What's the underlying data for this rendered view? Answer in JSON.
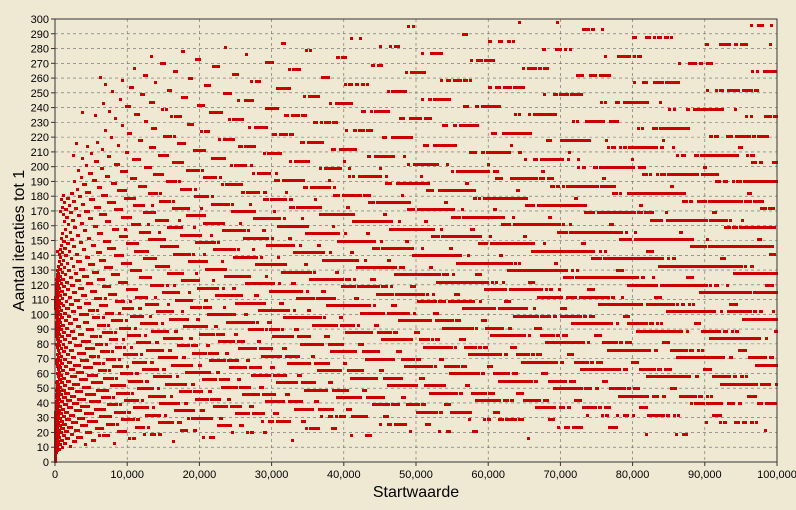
{
  "chart_data": {
    "type": "scatter",
    "title": "",
    "xlabel": "Startwaarde",
    "ylabel": "Aantal iteraties tot 1",
    "xlim": [
      0,
      100000
    ],
    "ylim": [
      0,
      300
    ],
    "x_ticks": [
      0,
      10000,
      20000,
      30000,
      40000,
      50000,
      60000,
      70000,
      80000,
      90000,
      100000
    ],
    "x_tick_labels": [
      "0",
      "10,000",
      "20,000",
      "30,000",
      "40,000",
      "50,000",
      "60,000",
      "70,000",
      "80,000",
      "90,000",
      "100,000"
    ],
    "y_ticks": [
      0,
      10,
      20,
      30,
      40,
      50,
      60,
      70,
      80,
      90,
      100,
      110,
      120,
      130,
      140,
      150,
      160,
      170,
      180,
      190,
      200,
      210,
      220,
      230,
      240,
      250,
      260,
      270,
      280,
      290,
      300
    ],
    "y_tick_labels": [
      "0",
      "10",
      "20",
      "30",
      "40",
      "50",
      "60",
      "70",
      "80",
      "90",
      "100",
      "110",
      "120",
      "130",
      "140",
      "150",
      "160",
      "170",
      "180",
      "190",
      "200",
      "210",
      "220",
      "230",
      "240",
      "250",
      "260",
      "270",
      "280",
      "290",
      "300"
    ],
    "grid": true,
    "legend": "none",
    "series": [
      {
        "x_start": 1,
        "x_end": 100000,
        "x_step": 1,
        "marker_color": "#cc0000"
      }
    ]
  },
  "colors": {
    "background": "#efe9d4",
    "plot_border": "#333333",
    "grid": "#666666",
    "marker": "#cc0000"
  }
}
